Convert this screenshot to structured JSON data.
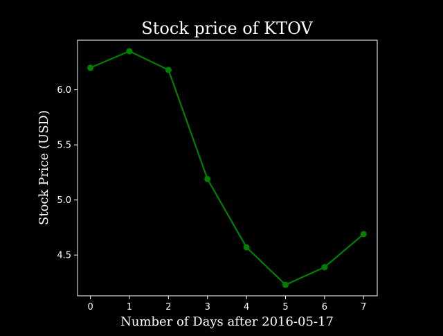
{
  "chart_data": {
    "type": "line",
    "title": "Stock price of KTOV",
    "xlabel": "Number of Days after 2016-05-17",
    "ylabel": "Stock Price (USD)",
    "x": [
      0,
      1,
      2,
      3,
      4,
      5,
      6,
      7
    ],
    "series": [
      {
        "values": [
          6.2,
          6.35,
          6.18,
          5.19,
          4.57,
          4.23,
          4.39,
          4.69
        ],
        "color": "#008000"
      }
    ],
    "xlim": [
      -0.33,
      7.35
    ],
    "ylim": [
      4.13,
      6.45
    ],
    "xticks": [
      0,
      1,
      2,
      3,
      4,
      5,
      6,
      7
    ],
    "yticks": [
      4.5,
      5.0,
      5.5,
      6.0
    ],
    "xtick_labels": [
      "0",
      "1",
      "2",
      "3",
      "4",
      "5",
      "6",
      "7"
    ],
    "ytick_labels": [
      "4.5",
      "5.0",
      "5.5",
      "6.0"
    ],
    "grid": false,
    "background": "#000000",
    "axis_color": "#ffffff",
    "text_color": "#ffffff"
  }
}
